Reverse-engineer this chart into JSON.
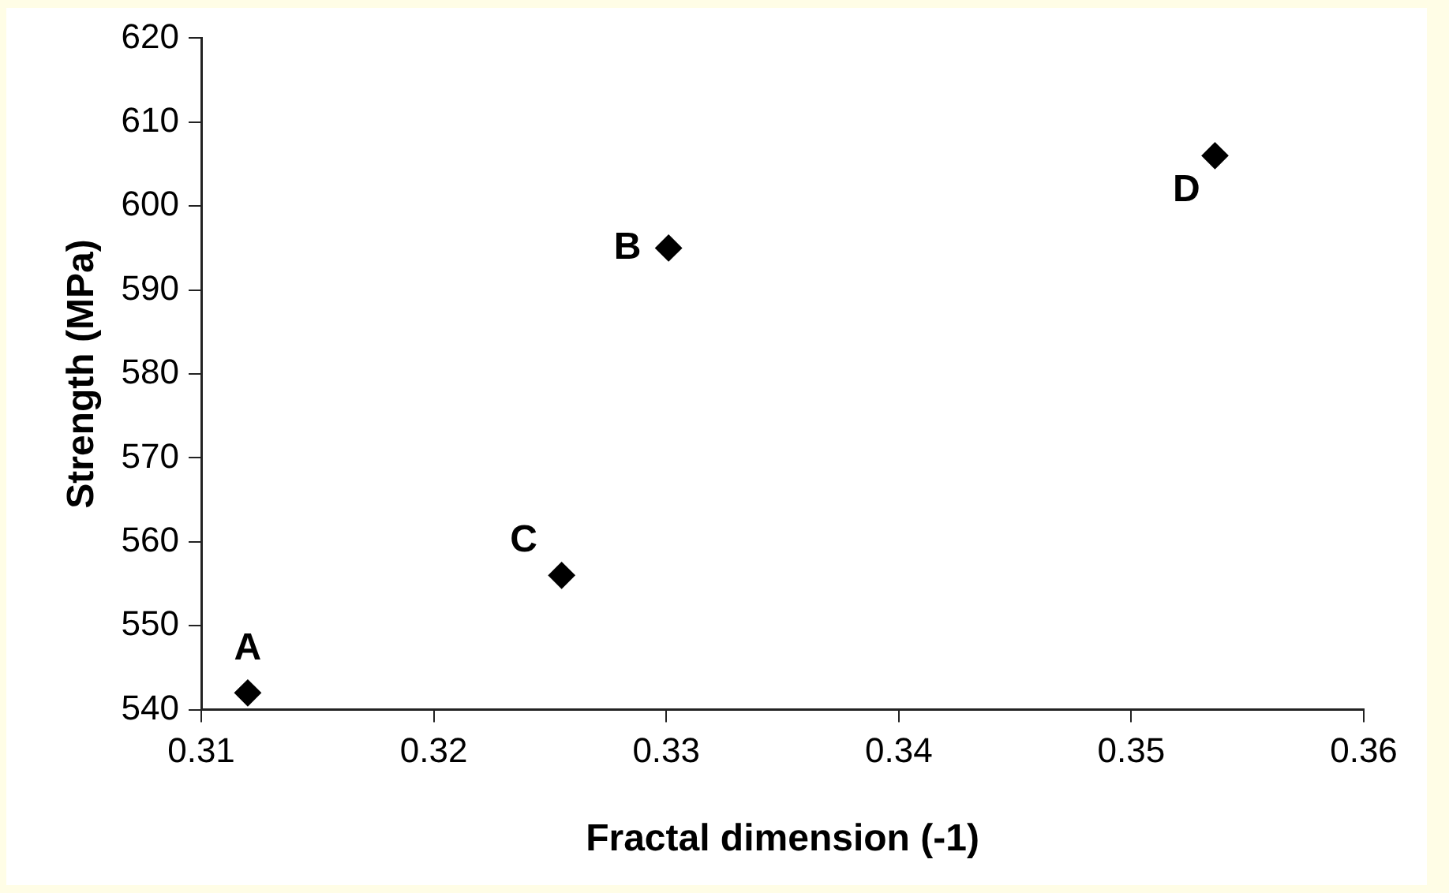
{
  "chart_data": {
    "type": "scatter",
    "xlabel": "Fractal dimension (-1)",
    "ylabel": "Strength (MPa)",
    "series": [
      {
        "color": "#000000",
        "x": [
          0.312,
          0.3301,
          0.3255,
          0.3536
        ],
        "values": [
          542,
          595,
          556,
          606
        ]
      }
    ],
    "xlim": [
      0.31,
      0.36
    ],
    "xticks": [
      0.31,
      0.32,
      0.33,
      0.34,
      0.35,
      0.36
    ],
    "ylim": [
      540,
      620
    ],
    "yticks": [
      540,
      550,
      560,
      570,
      580,
      590,
      600,
      610,
      620
    ],
    "annotations": [
      {
        "text": "A",
        "x": 0.312,
        "y": 542
      },
      {
        "text": "B",
        "x": 0.3301,
        "y": 595
      },
      {
        "text": "C",
        "x": 0.3255,
        "y": 556
      },
      {
        "text": "D",
        "x": 0.3536,
        "y": 606
      }
    ],
    "grid": false,
    "legend": false,
    "marker": "diamond"
  }
}
